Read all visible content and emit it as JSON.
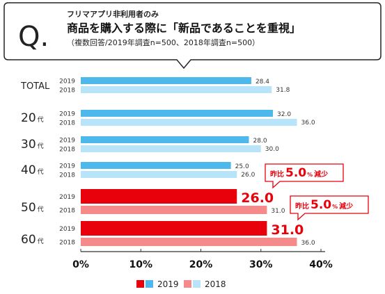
{
  "question": {
    "mark": "Q.",
    "target": "フリマアプリ非利用者のみ",
    "title": "商品を購入する際に「新品であることを重視」",
    "note": "（複数回答/2019年調査n=500、2018年調査n=500）"
  },
  "chart_data": {
    "type": "bar",
    "orientation": "horizontal",
    "categories": [
      {
        "label": "TOTAL",
        "suffix": "",
        "values": {
          "2019": 28.4,
          "2018": 31.8
        },
        "labels": {
          "2019": "28.4",
          "2018": "31.8"
        }
      },
      {
        "label": "20",
        "suffix": "代",
        "values": {
          "2019": 32.0,
          "2018": 36.0
        },
        "labels": {
          "2019": "32.0",
          "2018": "36.0"
        }
      },
      {
        "label": "30",
        "suffix": "代",
        "values": {
          "2019": 28.0,
          "2018": 30.0
        },
        "labels": {
          "2019": "28.0",
          "2018": "30.0"
        }
      },
      {
        "label": "40",
        "suffix": "代",
        "values": {
          "2019": 25.0,
          "2018": 26.0
        },
        "labels": {
          "2019": "25.0",
          "2018": "26.0"
        }
      },
      {
        "label": "50",
        "suffix": "代",
        "values": {
          "2019": 26.0,
          "2018": 31.0
        },
        "labels": {
          "2019": "26.0",
          "2018": "31.0"
        },
        "highlight": true,
        "callout": {
          "prefix": "昨比",
          "value": "5.0",
          "unit": "%",
          "suffix": "減少"
        }
      },
      {
        "label": "60",
        "suffix": "代",
        "values": {
          "2019": 31.0,
          "2018": 36.0
        },
        "labels": {
          "2019": "31.0",
          "2018": "36.0"
        },
        "highlight": true,
        "callout": {
          "prefix": "昨比",
          "value": "5.0",
          "unit": "%",
          "suffix": "減少"
        }
      }
    ],
    "series": [
      {
        "name": "2019",
        "color": "#4db8ec",
        "highlight_color": "#e8000b"
      },
      {
        "name": "2018",
        "color": "#b7e4f9",
        "highlight_color": "#f48a8a"
      }
    ],
    "xlim": [
      0,
      40
    ],
    "xticks": [
      "0%",
      "10%",
      "20%",
      "30%",
      "40%"
    ],
    "tick_values": [
      0,
      10,
      20,
      30,
      40
    ],
    "legend": {
      "placement": "bottom",
      "items": [
        {
          "swatches": [
            "#e8000b",
            "#4db8ec"
          ],
          "label": "2019"
        },
        {
          "swatches": [
            "#f48a8a",
            "#b7e4f9"
          ],
          "label": "2018"
        }
      ]
    },
    "grid": false
  }
}
